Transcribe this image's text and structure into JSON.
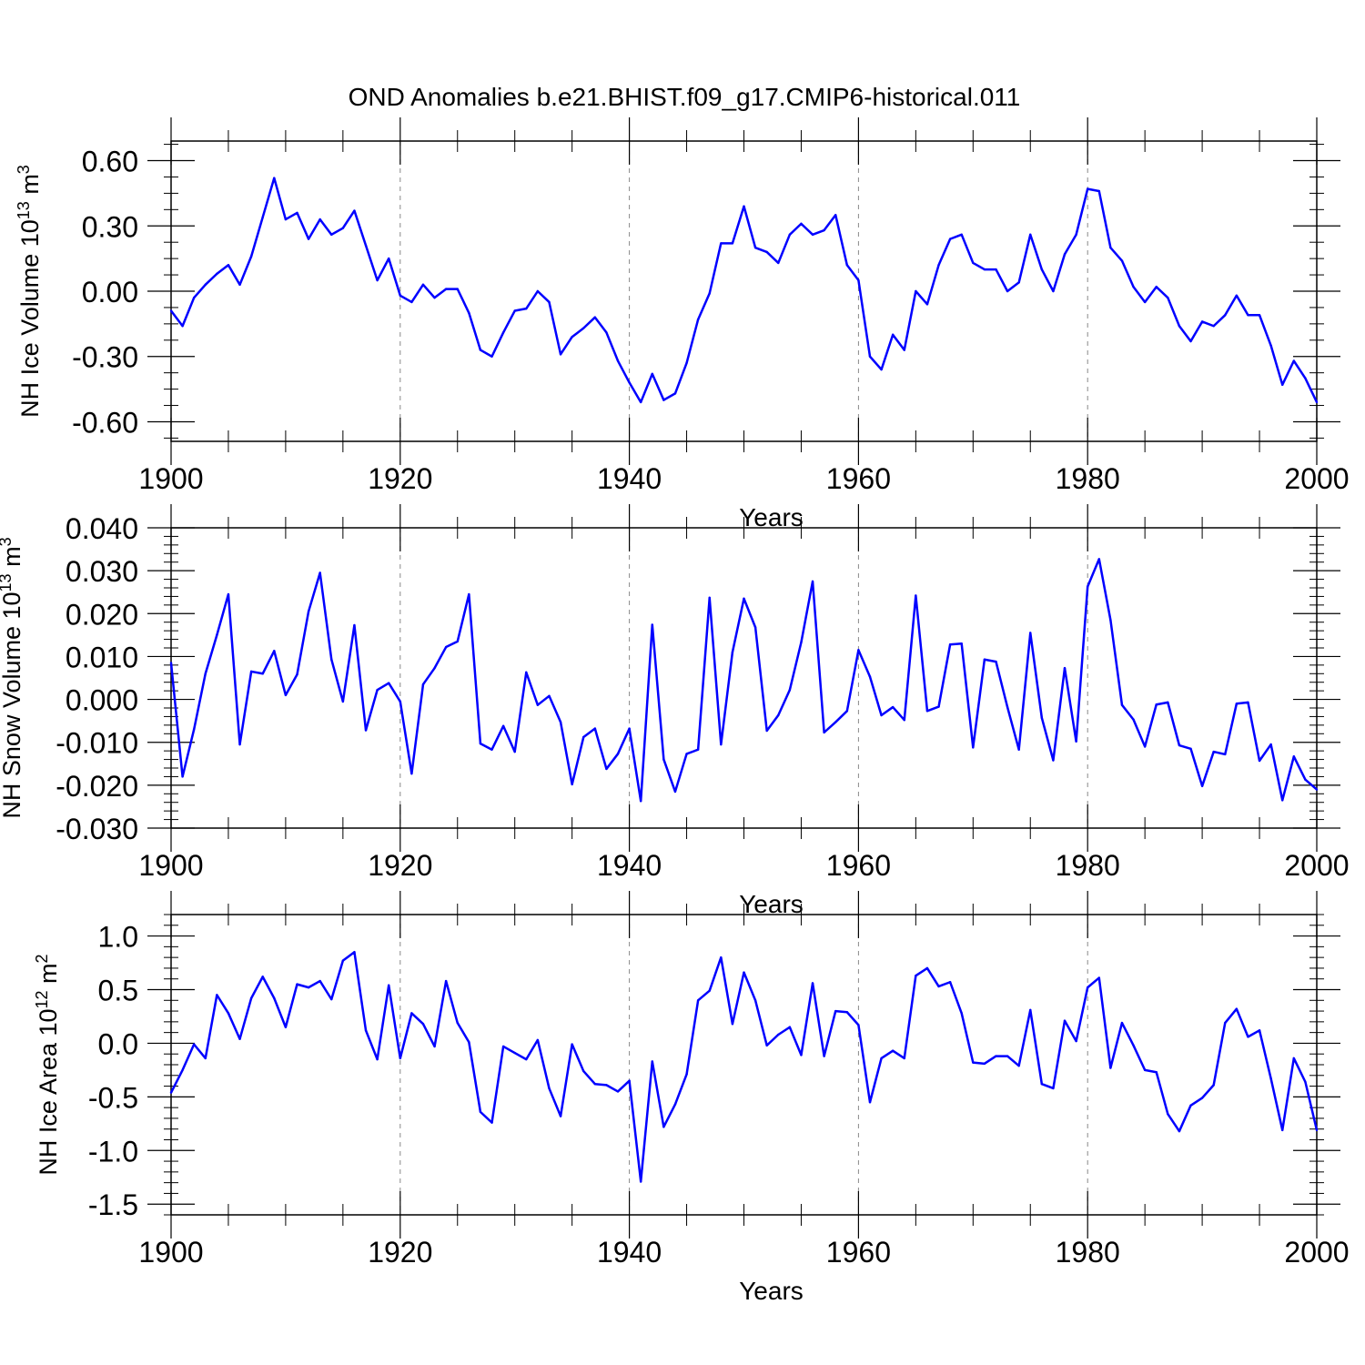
{
  "title": "OND Anomalies b.e21.BHIST.f09_g17.CMIP6-historical.011",
  "colors": {
    "series": "#0000ff",
    "axis": "#000000",
    "grid": "#888888"
  },
  "chart_data": [
    {
      "type": "line",
      "ylabel": "NH Ice Volume 10",
      "ylabel_exp": "13",
      "ylabel_unit": " m",
      "ylabel_unit_exp": "3",
      "xlabel": "Years",
      "xlim": [
        1900,
        2000
      ],
      "ylim": [
        -0.69,
        0.69
      ],
      "yticks": [
        0.6,
        0.3,
        0.0,
        -0.3,
        -0.6
      ],
      "ytick_labels": [
        "0.60",
        "0.30",
        "0.00",
        "-0.30",
        "-0.60"
      ],
      "yminor": 0.075,
      "xticks": [
        1900,
        1920,
        1940,
        1960,
        1980,
        2000
      ],
      "xtick_labels": [
        "1900",
        "1920",
        "1940",
        "1960",
        "1980",
        "2000"
      ],
      "gridlines_x": [
        1920,
        1940,
        1960,
        1980
      ],
      "start_year": 1900,
      "values": [
        -0.09,
        -0.16,
        -0.03,
        0.03,
        0.08,
        0.12,
        0.03,
        0.16,
        0.34,
        0.52,
        0.33,
        0.36,
        0.24,
        0.33,
        0.26,
        0.29,
        0.37,
        0.21,
        0.05,
        0.15,
        -0.02,
        -0.05,
        0.03,
        -0.03,
        0.01,
        0.01,
        -0.1,
        -0.27,
        -0.3,
        -0.19,
        -0.09,
        -0.08,
        0.0,
        -0.05,
        -0.29,
        -0.21,
        -0.17,
        -0.12,
        -0.19,
        -0.32,
        -0.42,
        -0.51,
        -0.38,
        -0.5,
        -0.47,
        -0.33,
        -0.13,
        -0.01,
        0.22,
        0.22,
        0.39,
        0.2,
        0.18,
        0.13,
        0.26,
        0.31,
        0.26,
        0.28,
        0.35,
        0.12,
        0.05,
        -0.3,
        -0.36,
        -0.2,
        -0.27,
        0.0,
        -0.06,
        0.12,
        0.24,
        0.26,
        0.13,
        0.1,
        0.1,
        0.0,
        0.04,
        0.26,
        0.1,
        0.0,
        0.17,
        0.26,
        0.47,
        0.46,
        0.2,
        0.14,
        0.02,
        -0.05,
        0.02,
        -0.03,
        -0.16,
        -0.23,
        -0.14,
        -0.16,
        -0.11,
        -0.02,
        -0.11,
        -0.11,
        -0.25,
        -0.43,
        -0.32,
        -0.4,
        -0.51
      ]
    },
    {
      "type": "line",
      "ylabel": "NH Snow Volume 10",
      "ylabel_exp": "13",
      "ylabel_unit": " m",
      "ylabel_unit_exp": "3",
      "xlabel": "Years",
      "xlim": [
        1900,
        2000
      ],
      "ylim": [
        -0.03,
        0.04
      ],
      "yticks": [
        0.04,
        0.03,
        0.02,
        0.01,
        0.0,
        -0.01,
        -0.02,
        -0.03
      ],
      "ytick_labels": [
        "0.040",
        "0.030",
        "0.020",
        "0.010",
        "0.000",
        "-0.010",
        "-0.020",
        "-0.030"
      ],
      "yminor": 0.002,
      "xticks": [
        1900,
        1920,
        1940,
        1960,
        1980,
        2000
      ],
      "xtick_labels": [
        "1900",
        "1920",
        "1940",
        "1960",
        "1980",
        "2000"
      ],
      "gridlines_x": [
        1920,
        1940,
        1960,
        1980
      ],
      "start_year": 1900,
      "values": [
        0.0085,
        -0.018,
        -0.007,
        0.006,
        0.015,
        0.0245,
        -0.0105,
        0.0065,
        0.006,
        0.0113,
        0.001,
        0.0058,
        0.0205,
        0.0295,
        0.0093,
        -0.0005,
        0.0173,
        -0.0072,
        0.0022,
        0.0038,
        -0.0005,
        -0.0173,
        0.0035,
        0.0073,
        0.0122,
        0.0135,
        0.0245,
        -0.0103,
        -0.0117,
        -0.0062,
        -0.0122,
        0.0063,
        -0.0013,
        0.0008,
        -0.0053,
        -0.0198,
        -0.0088,
        -0.0068,
        -0.0162,
        -0.0127,
        -0.0068,
        -0.0237,
        0.0174,
        -0.014,
        -0.0215,
        -0.0127,
        -0.0117,
        0.0237,
        -0.0105,
        0.011,
        0.0235,
        0.0168,
        -0.0073,
        -0.0037,
        0.0022,
        0.0133,
        0.0275,
        -0.0077,
        -0.0053,
        -0.0027,
        0.0115,
        0.0053,
        -0.0037,
        -0.0018,
        -0.0048,
        0.0242,
        -0.0027,
        -0.0017,
        0.0128,
        0.013,
        -0.0112,
        0.0093,
        0.0088,
        -0.0018,
        -0.0117,
        0.0155,
        -0.0043,
        -0.0142,
        0.0073,
        -0.0098,
        0.0263,
        0.0327,
        0.0185,
        -0.0013,
        -0.0047,
        -0.011,
        -0.0012,
        -0.0007,
        -0.0107,
        -0.0115,
        -0.0202,
        -0.0122,
        -0.0128,
        -0.001,
        -0.0007,
        -0.0143,
        -0.0105,
        -0.0235,
        -0.0133,
        -0.0187,
        -0.021
      ]
    },
    {
      "type": "line",
      "ylabel": "NH Ice Area 10",
      "ylabel_exp": "12",
      "ylabel_unit": " m",
      "ylabel_unit_exp": "2",
      "xlabel": "Years",
      "xlim": [
        1900,
        2000
      ],
      "ylim": [
        -1.6,
        1.2
      ],
      "yticks": [
        1.0,
        0.5,
        0.0,
        -0.5,
        -1.0,
        -1.5
      ],
      "ytick_labels": [
        "1.0",
        "0.5",
        "0.0",
        "-0.5",
        "-1.0",
        "-1.5"
      ],
      "yminor": 0.1,
      "xticks": [
        1900,
        1920,
        1940,
        1960,
        1980,
        2000
      ],
      "xtick_labels": [
        "1900",
        "1920",
        "1940",
        "1960",
        "1980",
        "2000"
      ],
      "gridlines_x": [
        1920,
        1940,
        1960,
        1980
      ],
      "start_year": 1900,
      "values": [
        -0.46,
        -0.25,
        -0.01,
        -0.14,
        0.45,
        0.28,
        0.04,
        0.42,
        0.62,
        0.42,
        0.15,
        0.55,
        0.52,
        0.58,
        0.41,
        0.77,
        0.85,
        0.12,
        -0.15,
        0.54,
        -0.14,
        0.28,
        0.18,
        -0.03,
        0.58,
        0.19,
        0.01,
        -0.64,
        -0.74,
        -0.03,
        -0.09,
        -0.15,
        0.03,
        -0.42,
        -0.68,
        -0.01,
        -0.26,
        -0.38,
        -0.39,
        -0.45,
        -0.35,
        -1.29,
        -0.17,
        -0.78,
        -0.57,
        -0.29,
        0.4,
        0.49,
        0.8,
        0.18,
        0.66,
        0.4,
        -0.02,
        0.08,
        0.15,
        -0.11,
        0.56,
        -0.12,
        0.3,
        0.29,
        0.17,
        -0.55,
        -0.14,
        -0.07,
        -0.14,
        0.63,
        0.7,
        0.53,
        0.57,
        0.28,
        -0.18,
        -0.19,
        -0.12,
        -0.12,
        -0.21,
        0.31,
        -0.38,
        -0.42,
        0.21,
        0.02,
        0.52,
        0.61,
        -0.23,
        0.19,
        -0.02,
        -0.25,
        -0.27,
        -0.66,
        -0.82,
        -0.58,
        -0.51,
        -0.39,
        0.19,
        0.32,
        0.06,
        0.12,
        -0.33,
        -0.81,
        -0.14,
        -0.36,
        -0.81
      ]
    }
  ]
}
